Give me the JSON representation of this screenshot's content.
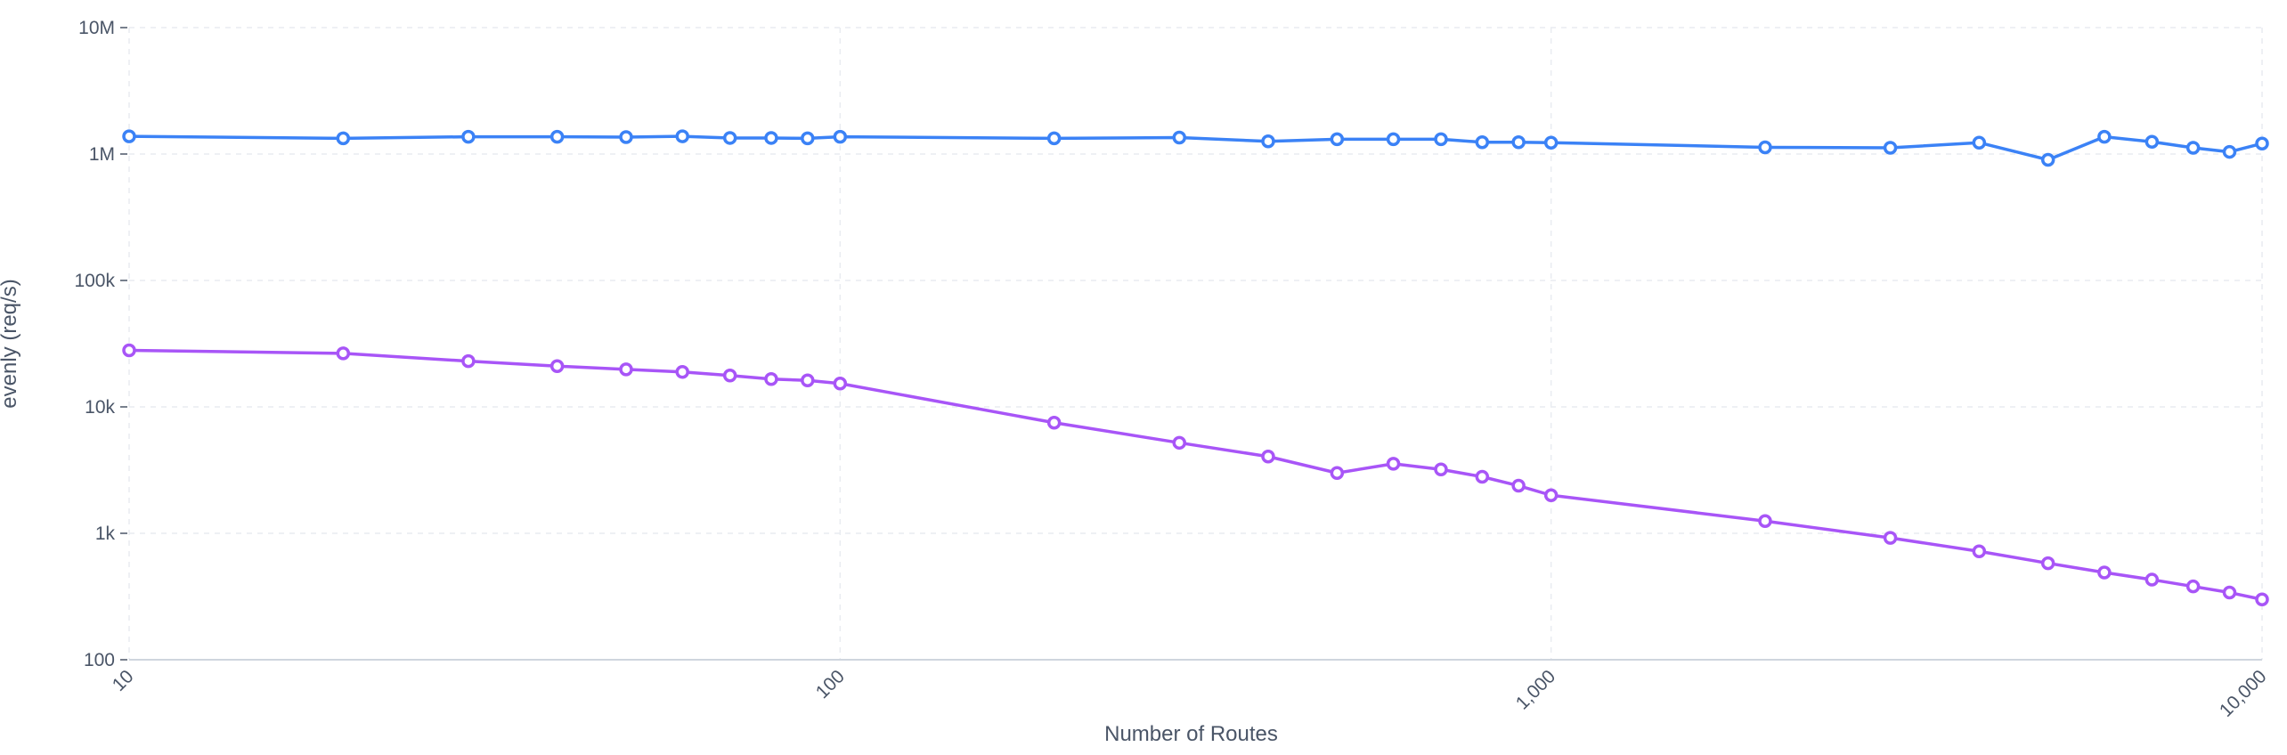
{
  "chart_data": {
    "type": "line",
    "title": "",
    "xlabel": "Number of Routes",
    "ylabel": "evenly (req/s)",
    "x_scale": "log",
    "y_scale": "log",
    "xlim": [
      10,
      10000
    ],
    "ylim": [
      100,
      10000000
    ],
    "grid": true,
    "legend": "none",
    "x_ticks": [
      {
        "value": 10,
        "label": "10"
      },
      {
        "value": 100,
        "label": "100"
      },
      {
        "value": 1000,
        "label": "1,000"
      },
      {
        "value": 10000,
        "label": "10,000"
      }
    ],
    "y_ticks": [
      {
        "value": 100,
        "label": "100"
      },
      {
        "value": 1000,
        "label": "1k"
      },
      {
        "value": 10000,
        "label": "10k"
      },
      {
        "value": 100000,
        "label": "100k"
      },
      {
        "value": 1000000,
        "label": "1M"
      },
      {
        "value": 10000000,
        "label": "10M"
      }
    ],
    "x": [
      10,
      20,
      30,
      40,
      50,
      60,
      70,
      80,
      90,
      100,
      200,
      300,
      400,
      500,
      600,
      700,
      800,
      900,
      1000,
      2000,
      3000,
      4000,
      5000,
      6000,
      7000,
      8000,
      9000,
      10000
    ],
    "series": [
      {
        "color": "#3b82f6",
        "values": [
          1380000,
          1330000,
          1370000,
          1370000,
          1360000,
          1380000,
          1340000,
          1340000,
          1330000,
          1370000,
          1330000,
          1350000,
          1260000,
          1310000,
          1310000,
          1310000,
          1240000,
          1240000,
          1230000,
          1130000,
          1120000,
          1230000,
          900000,
          1370000,
          1250000,
          1120000,
          1040000,
          1210000
        ]
      },
      {
        "color": "#a855f7",
        "values": [
          28000,
          26500,
          23000,
          21000,
          19800,
          18900,
          17700,
          16600,
          16200,
          15300,
          7500,
          5200,
          4050,
          3000,
          3550,
          3200,
          2800,
          2380,
          2000,
          1250,
          920,
          720,
          580,
          490,
          430,
          380,
          340,
          300
        ]
      }
    ]
  }
}
